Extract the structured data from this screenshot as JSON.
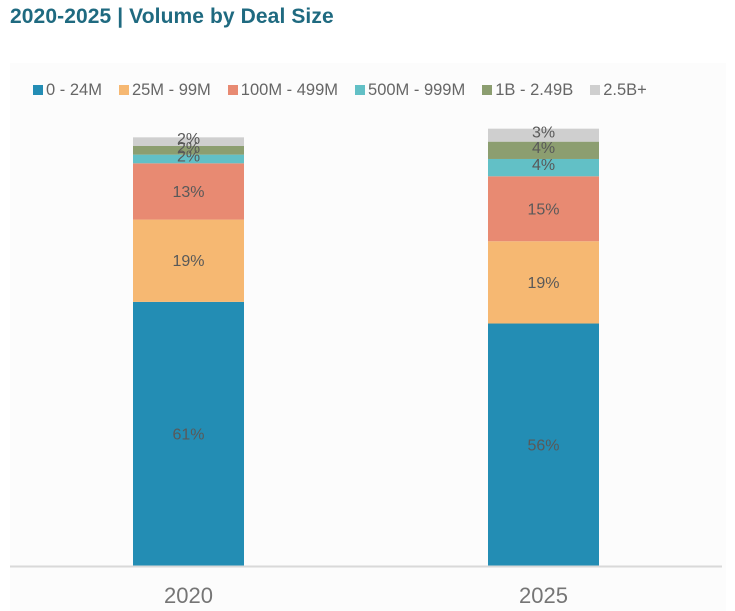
{
  "chart_data": {
    "type": "bar",
    "stacked": true,
    "title": "2020-2025 | Volume by Deal Size",
    "xlabel": "",
    "ylabel": "",
    "ylim": [
      0,
      100
    ],
    "grid": false,
    "legend_position": "top",
    "categories": [
      "2020",
      "2025"
    ],
    "series": [
      {
        "name": "0 - 24M",
        "color": "#238db4",
        "values": [
          61,
          56
        ],
        "labels": [
          "61%",
          "56%"
        ]
      },
      {
        "name": "25M - 99M",
        "color": "#f6b872",
        "values": [
          19,
          19
        ],
        "labels": [
          "19%",
          "19%"
        ]
      },
      {
        "name": "100M - 499M",
        "color": "#e88a72",
        "values": [
          13,
          15
        ],
        "labels": [
          "13%",
          "15%"
        ]
      },
      {
        "name": "500M - 999M",
        "color": "#62c0c6",
        "values": [
          2,
          4
        ],
        "labels": [
          "2%",
          "4%"
        ]
      },
      {
        "name": "1B - 2.49B",
        "color": "#8c9e70",
        "values": [
          2,
          4
        ],
        "labels": [
          "2%",
          "4%"
        ]
      },
      {
        "name": "2.5B+",
        "color": "#cfcfcf",
        "values": [
          2,
          3
        ],
        "labels": [
          "2%",
          "3%"
        ]
      }
    ]
  }
}
